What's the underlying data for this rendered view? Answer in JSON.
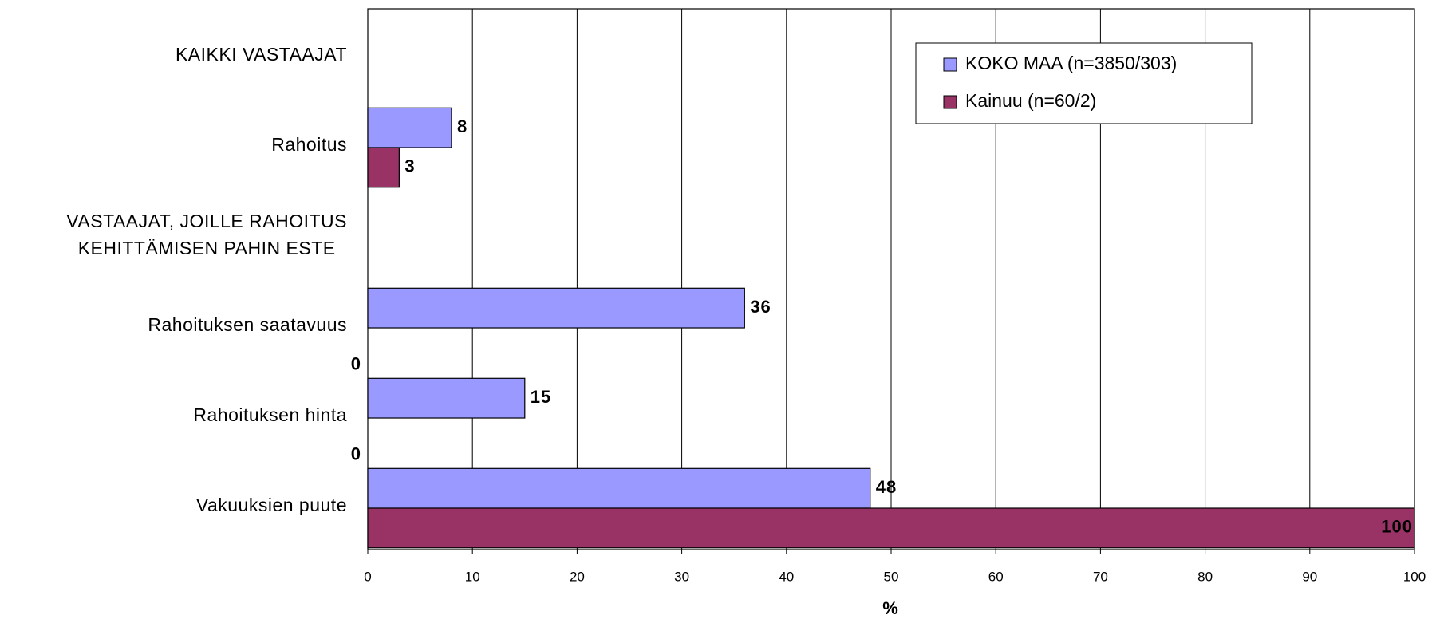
{
  "chart_data": {
    "type": "hbar",
    "categories": [
      "KAIKKI VASTAAJAT",
      "Rahoitus",
      "VASTAAJAT, JOILLE RAHOITUS\nKEHITTÄMISEN PAHIN ESTE",
      "Rahoituksen saatavuus",
      "Rahoituksen hinta",
      "Vakuuksien puute"
    ],
    "series": [
      {
        "name": "KOKO MAA (n=3850/303)",
        "color": "#9999ff",
        "values": [
          null,
          8,
          null,
          36,
          15,
          48
        ]
      },
      {
        "name": "Kainuu (n=60/2)",
        "color": "#993366",
        "values": [
          null,
          3,
          null,
          0,
          0,
          100
        ]
      }
    ],
    "xlabel": "%",
    "xlim": [
      0,
      100
    ],
    "xticks": [
      0,
      10,
      20,
      30,
      40,
      50,
      60,
      70,
      80,
      90,
      100
    ],
    "grid": true,
    "legend": "upper right"
  }
}
